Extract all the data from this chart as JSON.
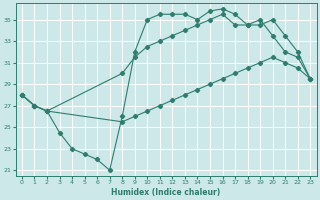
{
  "xlabel": "Humidex (Indice chaleur)",
  "background_color": "#cce8e8",
  "grid_color": "#ffffff",
  "line_color": "#2e7d6e",
  "xlim": [
    -0.5,
    23.5
  ],
  "ylim": [
    20.5,
    36.5
  ],
  "xticks": [
    0,
    1,
    2,
    3,
    4,
    5,
    6,
    7,
    8,
    9,
    10,
    11,
    12,
    13,
    14,
    15,
    16,
    17,
    18,
    19,
    20,
    21,
    22,
    23
  ],
  "yticks": [
    21,
    23,
    25,
    27,
    29,
    31,
    33,
    35
  ],
  "line1_x": [
    0,
    1,
    2,
    3,
    4,
    5,
    6,
    7,
    8,
    9,
    10,
    11,
    12,
    13,
    14,
    15,
    16,
    17,
    18,
    19,
    20,
    21,
    22,
    23
  ],
  "line1_y": [
    28.0,
    27.0,
    26.5,
    24.5,
    23.0,
    22.5,
    22.0,
    21.0,
    26.0,
    32.0,
    35.0,
    35.5,
    35.5,
    35.5,
    35.0,
    35.8,
    36.0,
    35.5,
    34.5,
    35.0,
    33.5,
    32.0,
    31.5,
    29.5
  ],
  "line2_x": [
    0,
    1,
    2,
    8,
    9,
    10,
    11,
    12,
    13,
    14,
    15,
    16,
    17,
    18,
    19,
    20,
    21,
    22,
    23
  ],
  "line2_y": [
    28.0,
    27.0,
    26.5,
    30.0,
    31.5,
    32.5,
    33.0,
    33.5,
    34.0,
    34.5,
    35.0,
    35.5,
    34.5,
    34.5,
    34.5,
    35.0,
    33.5,
    32.0,
    29.5
  ],
  "line3_x": [
    0,
    1,
    2,
    8,
    9,
    10,
    11,
    12,
    13,
    14,
    15,
    16,
    17,
    18,
    19,
    20,
    21,
    22,
    23
  ],
  "line3_y": [
    28.0,
    27.0,
    26.5,
    25.5,
    26.0,
    26.5,
    27.0,
    27.5,
    28.0,
    28.5,
    29.0,
    29.5,
    30.0,
    30.5,
    31.0,
    31.5,
    31.0,
    30.5,
    29.5
  ]
}
